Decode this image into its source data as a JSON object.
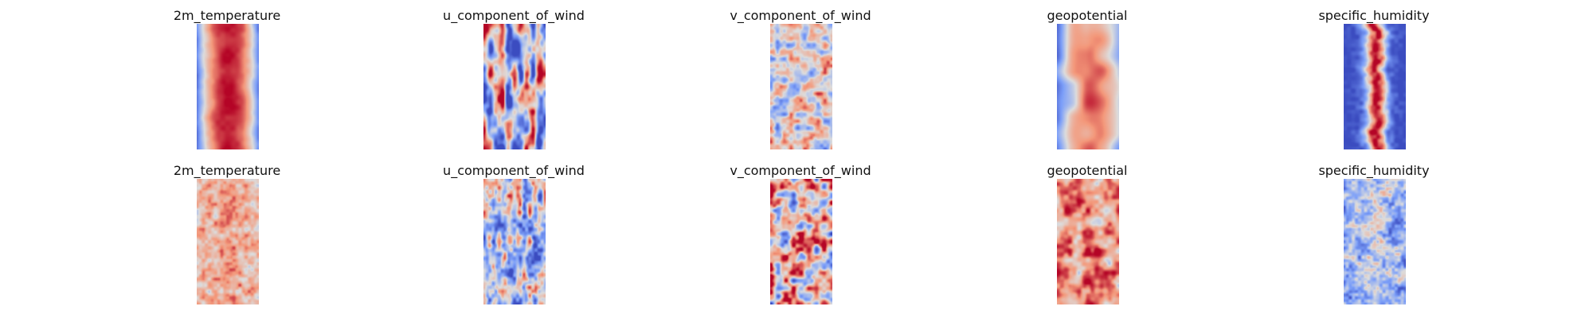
{
  "figure": {
    "colormap": "coolwarm",
    "colors": {
      "cold": "#3b4cc0",
      "neutral": "#dddddd",
      "warm": "#b40426"
    },
    "rows": [
      {
        "panels": [
          {
            "title": "2m_temperature",
            "pattern": "warm-core"
          },
          {
            "title": "u_component_of_wind",
            "pattern": "streaky"
          },
          {
            "title": "v_component_of_wind",
            "pattern": "mottled-light"
          },
          {
            "title": "geopotential",
            "pattern": "warm-core-smooth"
          },
          {
            "title": "specific_humidity",
            "pattern": "cold-edges-warm-ridge"
          }
        ]
      },
      {
        "panels": [
          {
            "title": "2m_temperature",
            "pattern": "warm-noisy"
          },
          {
            "title": "u_component_of_wind",
            "pattern": "streaky-cool"
          },
          {
            "title": "v_component_of_wind",
            "pattern": "mottled-strong"
          },
          {
            "title": "geopotential",
            "pattern": "warm-dense"
          },
          {
            "title": "specific_humidity",
            "pattern": "cool-speckled"
          }
        ]
      }
    ]
  }
}
